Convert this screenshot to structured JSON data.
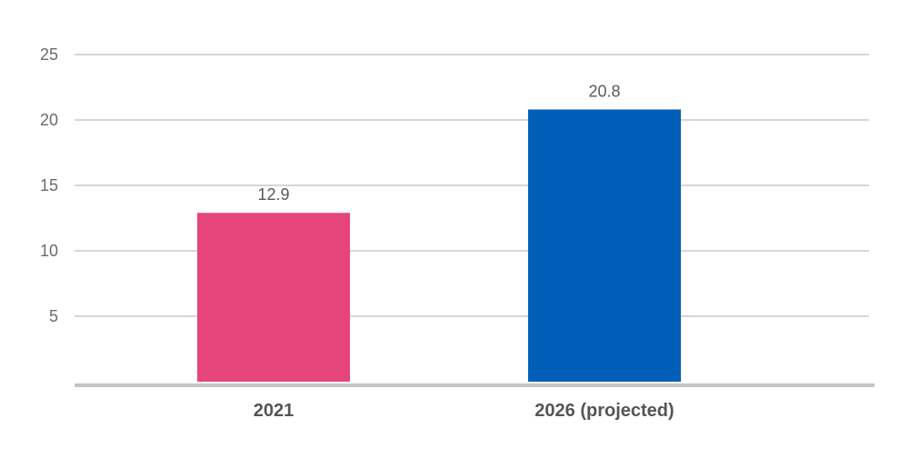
{
  "chart_data": {
    "type": "bar",
    "title": "",
    "xlabel": "",
    "ylabel": "",
    "categories": [
      "2021",
      "2026 (projected)"
    ],
    "values": [
      12.9,
      20.8
    ],
    "data_labels": [
      "12.9",
      "20.8"
    ],
    "yticks": [
      5,
      10,
      15,
      20,
      25
    ],
    "ylim": [
      0,
      25
    ],
    "grid": true,
    "legend": "none",
    "colors": [
      "#e5457a",
      "#005eb8"
    ],
    "grid_color": "#c8c8c8",
    "baseline_color": "#c4c4c4"
  }
}
